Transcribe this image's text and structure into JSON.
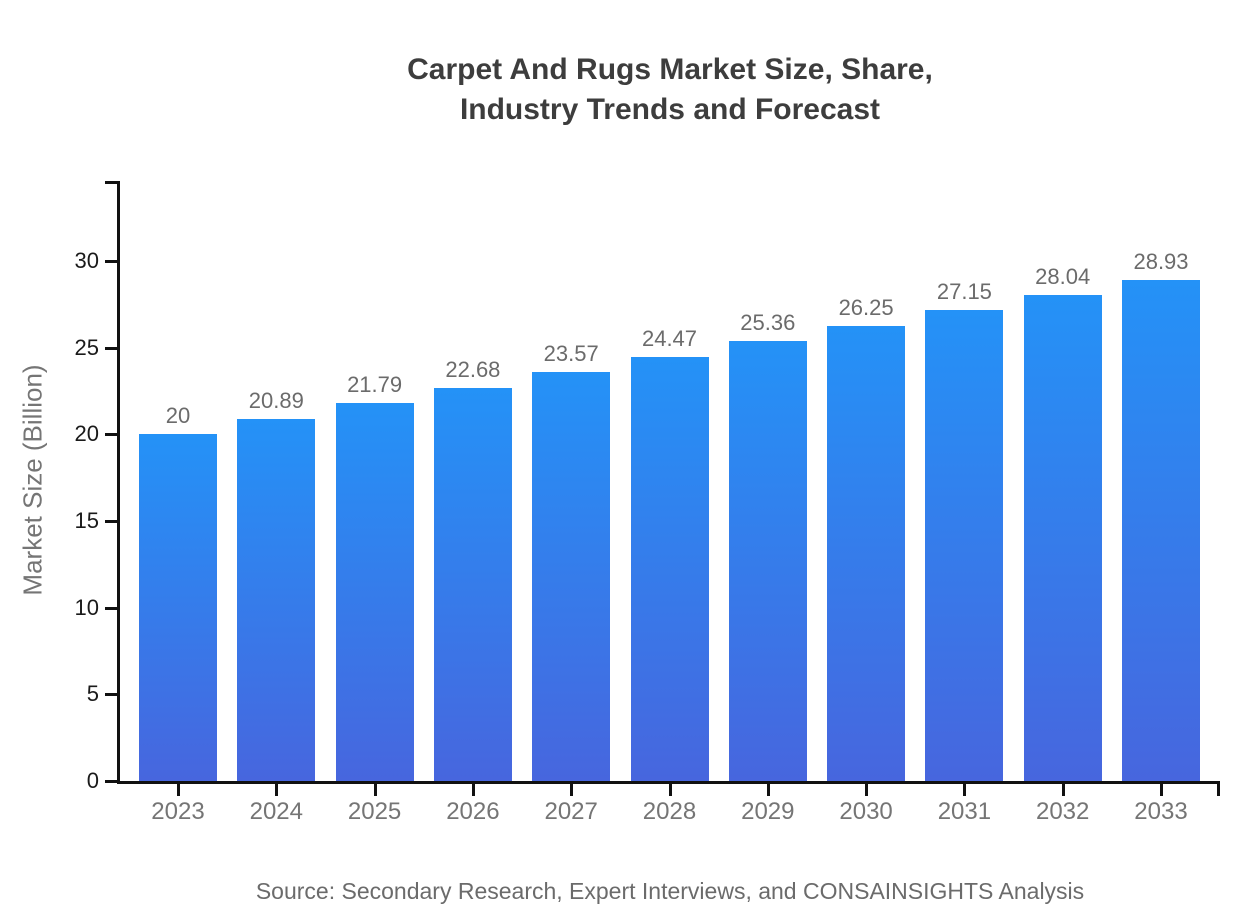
{
  "header": {
    "title_line1": "Carpet And Rugs Market Size, Share,",
    "title_line2": "Industry Trends and Forecast"
  },
  "footer": {
    "source": "Source: Secondary Research, Expert Interviews, and CONSAINSIGHTS Analysis"
  },
  "chart_data": {
    "type": "bar",
    "title": "Carpet And Rugs Market Size, Share, Industry Trends and Forecast",
    "categories": [
      "2023",
      "2024",
      "2025",
      "2026",
      "2027",
      "2028",
      "2029",
      "2030",
      "2031",
      "2032",
      "2033"
    ],
    "values": [
      20,
      20.89,
      21.79,
      22.68,
      23.57,
      24.47,
      25.36,
      26.25,
      27.15,
      28.04,
      28.93
    ],
    "value_labels": [
      "20",
      "20.89",
      "21.79",
      "22.68",
      "23.57",
      "24.47",
      "25.36",
      "26.25",
      "27.15",
      "28.04",
      "28.93"
    ],
    "xlabel": "",
    "ylabel": "Market Size (Billion)",
    "ylim": [
      0,
      34.6
    ],
    "yticks": [
      0,
      5,
      10,
      15,
      20,
      25,
      30
    ],
    "grid": false,
    "legend": null,
    "colors": {
      "bar_gradient_top": "#2492f7",
      "bar_gradient_bottom": "#4766de",
      "axis": "#111111",
      "y_tick_label": "#1a1a1a",
      "x_tick_label": "#757575",
      "value_label": "#6b6b6b",
      "title": "#3d3d3d",
      "source": "#6b6b6b"
    }
  }
}
